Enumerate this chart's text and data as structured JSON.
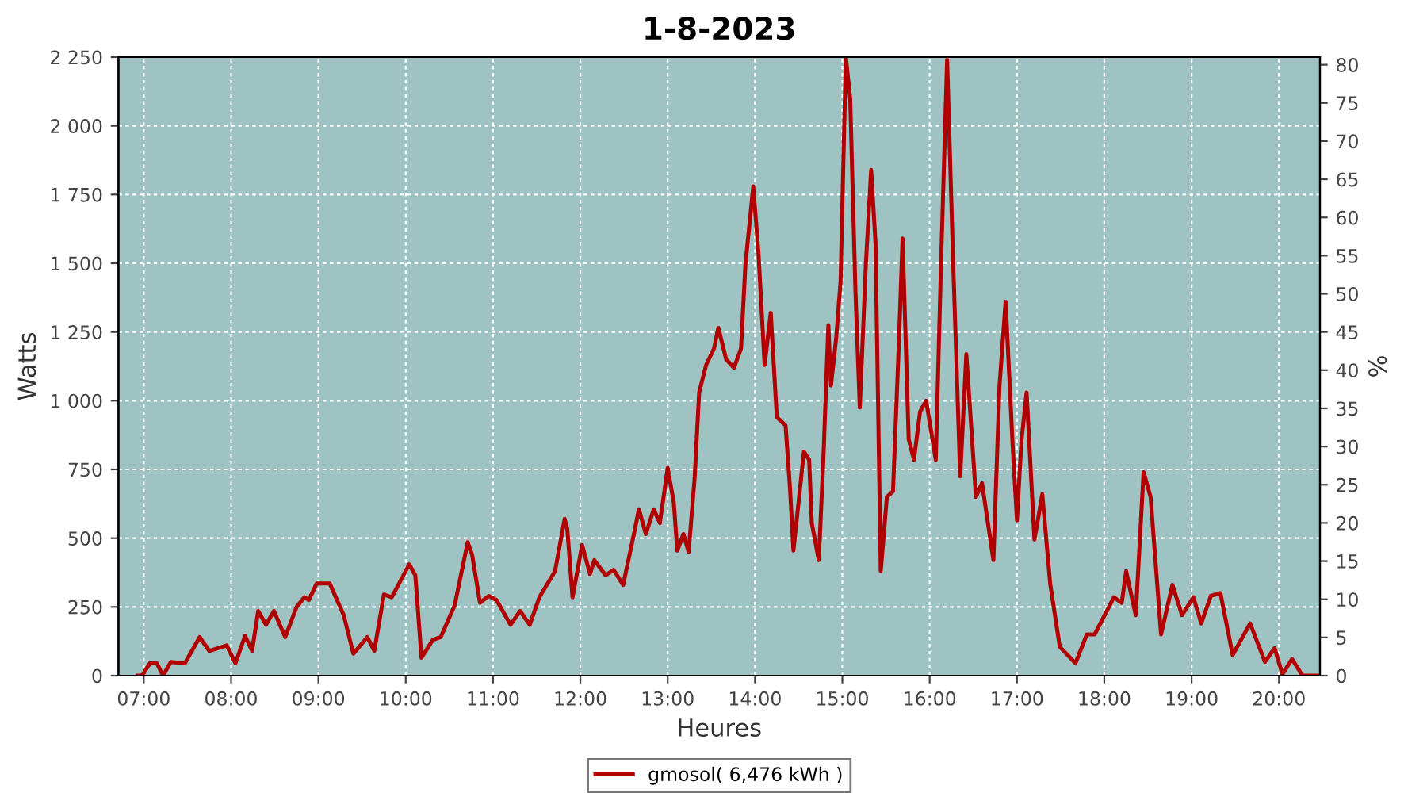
{
  "chart_data": {
    "type": "line",
    "title": "1-8-2023",
    "xlabel": "Heures",
    "ylabel": "Watts",
    "y2label": "%",
    "xlim": [
      6.71,
      20.47
    ],
    "xticks": [
      {
        "value": 7,
        "label": "07:00"
      },
      {
        "value": 8,
        "label": "08:00"
      },
      {
        "value": 9,
        "label": "09:00"
      },
      {
        "value": 10,
        "label": "10:00"
      },
      {
        "value": 11,
        "label": "11:00"
      },
      {
        "value": 12,
        "label": "12:00"
      },
      {
        "value": 13,
        "label": "13:00"
      },
      {
        "value": 14,
        "label": "14:00"
      },
      {
        "value": 15,
        "label": "15:00"
      },
      {
        "value": 16,
        "label": "16:00"
      },
      {
        "value": 17,
        "label": "17:00"
      },
      {
        "value": 18,
        "label": "18:00"
      },
      {
        "value": 19,
        "label": "19:00"
      },
      {
        "value": 20,
        "label": "20:00"
      }
    ],
    "ylim": [
      0,
      2250
    ],
    "yticks": [
      0,
      250,
      500,
      750,
      {
        "value": 1000,
        "label": "1 000"
      },
      {
        "value": 1250,
        "label": "1 250"
      },
      {
        "value": 1500,
        "label": "1 500"
      },
      {
        "value": 1750,
        "label": "1 750"
      },
      {
        "value": 2000,
        "label": "2 000"
      },
      {
        "value": 2250,
        "label": "2 250"
      }
    ],
    "y2lim": [
      0,
      81
    ],
    "y2ticks": [
      0,
      5,
      10,
      15,
      20,
      25,
      30,
      35,
      40,
      45,
      50,
      55,
      60,
      65,
      70,
      75,
      80
    ],
    "grid": true,
    "legend": "bottom",
    "line_style": "solid",
    "series": [
      {
        "name": "gmosol( 6,476 kWh )",
        "color": "#b20000",
        "x": [
          6.93,
          6.98,
          7.07,
          7.15,
          7.22,
          7.31,
          7.47,
          7.64,
          7.75,
          7.95,
          8.05,
          8.16,
          8.24,
          8.31,
          8.4,
          8.49,
          8.62,
          8.75,
          8.84,
          8.89,
          8.98,
          9.13,
          9.29,
          9.4,
          9.56,
          9.64,
          9.75,
          9.84,
          10.04,
          10.11,
          10.18,
          10.31,
          10.4,
          10.56,
          10.71,
          10.76,
          10.85,
          10.95,
          11.04,
          11.2,
          11.31,
          11.42,
          11.53,
          11.71,
          11.82,
          11.85,
          11.91,
          12.02,
          12.11,
          12.16,
          12.29,
          12.38,
          12.49,
          12.62,
          12.67,
          12.75,
          12.84,
          12.91,
          13.0,
          13.07,
          13.11,
          13.18,
          13.24,
          13.31,
          13.36,
          13.44,
          13.53,
          13.58,
          13.67,
          13.76,
          13.84,
          13.89,
          13.98,
          14.04,
          14.11,
          14.18,
          14.25,
          14.35,
          14.4,
          14.44,
          14.53,
          14.56,
          14.62,
          14.65,
          14.73,
          14.78,
          14.84,
          14.87,
          14.93,
          14.98,
          15.04,
          15.09,
          15.15,
          15.2,
          15.27,
          15.33,
          15.38,
          15.44,
          15.51,
          15.58,
          15.65,
          15.69,
          15.71,
          15.76,
          15.82,
          15.89,
          15.96,
          16.07,
          16.13,
          16.2,
          16.27,
          16.35,
          16.42,
          16.53,
          16.6,
          16.73,
          16.8,
          16.87,
          16.95,
          17.0,
          17.05,
          17.11,
          17.2,
          17.29,
          17.38,
          17.49,
          17.67,
          17.8,
          17.89,
          18.11,
          18.2,
          18.25,
          18.36,
          18.45,
          18.53,
          18.65,
          18.78,
          18.89,
          19.02,
          19.11,
          19.22,
          19.33,
          19.47,
          19.67,
          19.84,
          19.95,
          20.04,
          20.15,
          20.27,
          20.45
        ],
        "values": [
          0,
          0,
          45,
          45,
          0,
          50,
          45,
          140,
          90,
          110,
          45,
          145,
          90,
          235,
          185,
          235,
          140,
          250,
          285,
          275,
          335,
          335,
          220,
          80,
          140,
          90,
          295,
          285,
          405,
          365,
          65,
          130,
          140,
          255,
          485,
          440,
          265,
          290,
          275,
          185,
          235,
          185,
          285,
          380,
          570,
          535,
          285,
          475,
          370,
          420,
          365,
          385,
          330,
          525,
          605,
          515,
          605,
          555,
          755,
          630,
          455,
          515,
          450,
          725,
          1030,
          1130,
          1190,
          1265,
          1150,
          1120,
          1190,
          1495,
          1780,
          1535,
          1130,
          1320,
          940,
          910,
          685,
          455,
          725,
          815,
          785,
          555,
          420,
          765,
          1275,
          1055,
          1230,
          1435,
          2250,
          2100,
          1400,
          975,
          1500,
          1840,
          1575,
          380,
          650,
          670,
          1230,
          1590,
          1380,
          860,
          785,
          960,
          1000,
          785,
          1495,
          2240,
          1495,
          725,
          1170,
          650,
          700,
          420,
          1055,
          1360,
          840,
          565,
          850,
          1030,
          495,
          660,
          335,
          105,
          45,
          150,
          150,
          285,
          265,
          380,
          220,
          740,
          650,
          150,
          330,
          220,
          285,
          190,
          290,
          300,
          75,
          190,
          50,
          100,
          5,
          60,
          0,
          0
        ]
      }
    ]
  }
}
